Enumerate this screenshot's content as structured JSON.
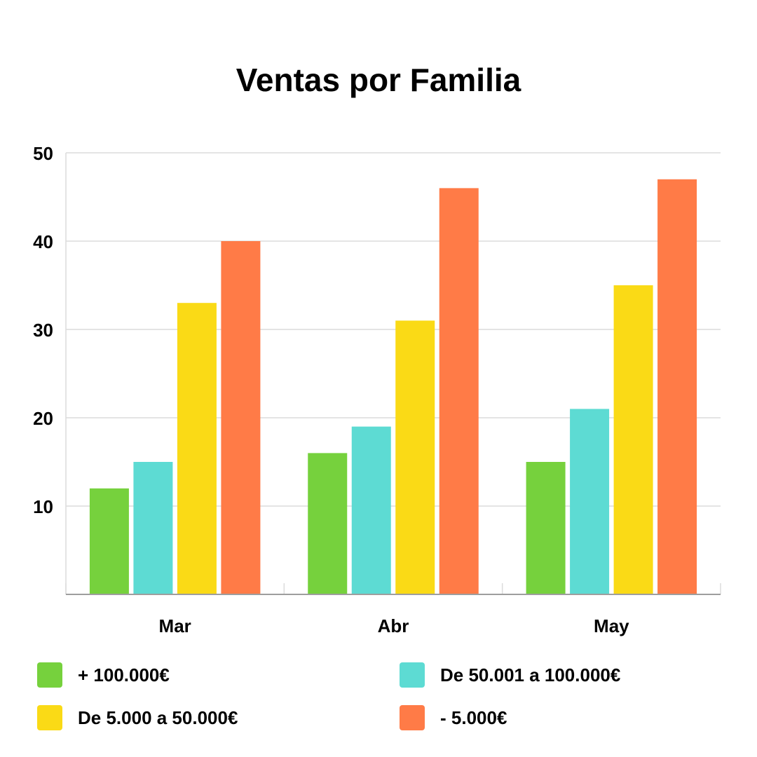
{
  "chart_data": {
    "type": "bar",
    "title": "Ventas por Familia",
    "xlabel": "",
    "ylabel": "",
    "categories": [
      "Mar",
      "Abr",
      "May"
    ],
    "series": [
      {
        "name": "+ 100.000€",
        "color": "#76D13D",
        "values": [
          12,
          16,
          15
        ]
      },
      {
        "name": "De 50.001 a 100.000€",
        "color": "#5DDBD3",
        "values": [
          15,
          19,
          21
        ]
      },
      {
        "name": "De 5.000 a 50.000€",
        "color": "#FADA16",
        "values": [
          33,
          31,
          35
        ]
      },
      {
        "name": "- 5.000€",
        "color": "#FF7B47",
        "values": [
          40,
          46,
          47
        ]
      }
    ],
    "ylim": [
      0,
      50
    ],
    "yticks": [
      10,
      20,
      30,
      40,
      50
    ],
    "grid": true,
    "legend_position": "bottom"
  }
}
